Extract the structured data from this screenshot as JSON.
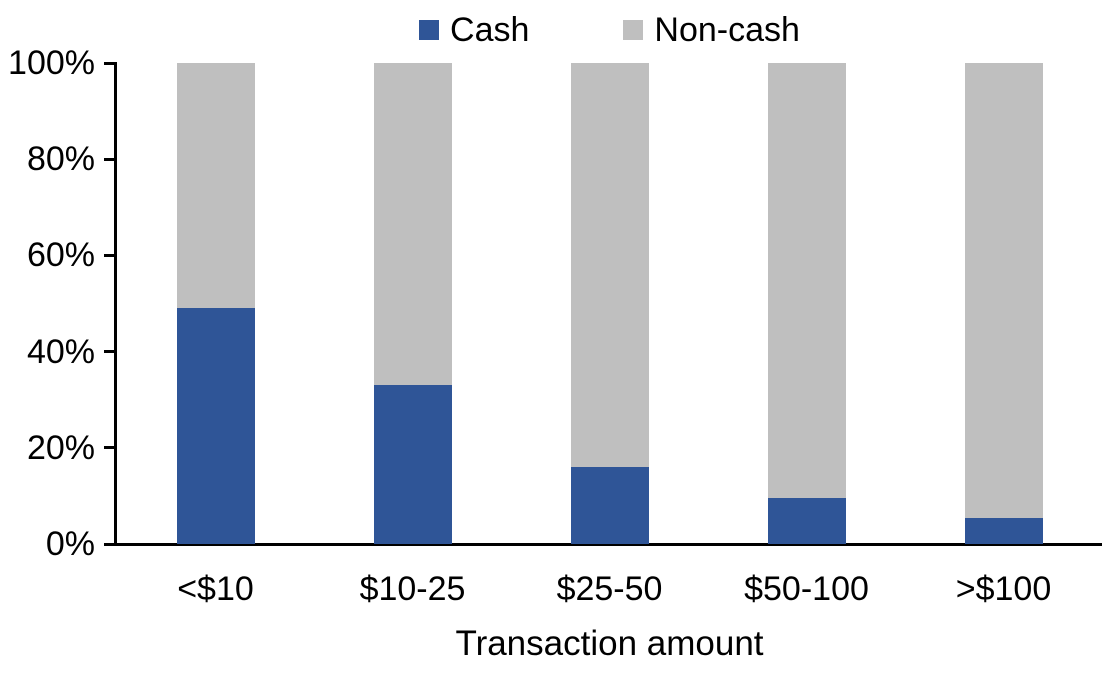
{
  "chart_data": {
    "type": "bar",
    "variant": "stacked-100-percent",
    "title": "",
    "xlabel": "Transaction amount",
    "ylabel": "",
    "categories": [
      "<$10",
      "$10-25",
      "$25-50",
      "$50-100",
      ">$100"
    ],
    "series": [
      {
        "name": "Cash",
        "color": "#2F5597",
        "values": [
          49,
          33,
          16,
          9.5,
          5.5
        ]
      },
      {
        "name": "Non-cash",
        "color": "#BFBFBF",
        "values": [
          51,
          67,
          84,
          90.5,
          94.5
        ]
      }
    ],
    "ylim": [
      0,
      100
    ],
    "yticks": [
      0,
      20,
      40,
      60,
      80,
      100
    ],
    "ytick_labels": [
      "0%",
      "20%",
      "40%",
      "60%",
      "80%",
      "100%"
    ],
    "legend_position": "top-center",
    "grid": false,
    "axis_color": "#000000",
    "text_color": "#000000"
  }
}
